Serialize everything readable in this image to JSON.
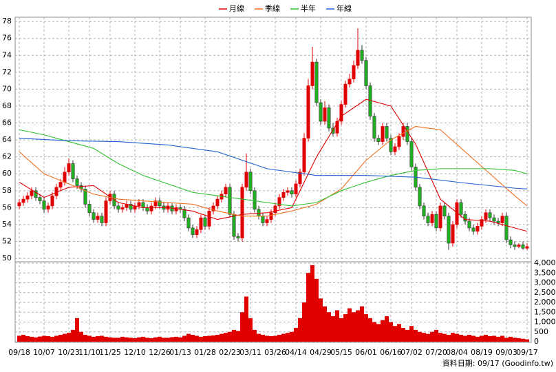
{
  "chart_data": {
    "type": "candlestick",
    "legend_position": "top",
    "up_color": "#e00000",
    "down_color": "#20b020",
    "volume_color": "#e00000",
    "grid": true,
    "source": "資料日期: 09/17 (Goodinfo.tw)",
    "categories": [
      "09/18",
      null,
      null,
      null,
      null,
      null,
      "10/07",
      null,
      null,
      null,
      null,
      null,
      "10/23",
      null,
      null,
      null,
      null,
      "11/10",
      null,
      null,
      null,
      null,
      "11/25",
      null,
      null,
      null,
      null,
      null,
      "12/10",
      null,
      null,
      null,
      null,
      null,
      "12/26",
      null,
      null,
      null,
      null,
      "01/13",
      null,
      null,
      null,
      null,
      null,
      "01/28",
      null,
      null,
      null,
      null,
      null,
      "02/23",
      null,
      null,
      null,
      null,
      "03/11",
      null,
      null,
      null,
      null,
      null,
      "03/26",
      null,
      null,
      null,
      null,
      "04/14",
      null,
      null,
      null,
      null,
      null,
      "04/29",
      null,
      null,
      null,
      null,
      "05/15",
      null,
      null,
      null,
      null,
      null,
      "06/01",
      null,
      null,
      null,
      null,
      null,
      "06/16",
      null,
      null,
      null,
      null,
      "07/02",
      null,
      null,
      null,
      null,
      null,
      "07/20",
      null,
      null,
      null,
      null,
      "08/04",
      null,
      null,
      null,
      null,
      null,
      "08/19",
      null,
      null,
      null,
      null,
      null,
      "09/03",
      null,
      null,
      null,
      null,
      "09/17"
    ],
    "open": [
      56.2,
      56.6,
      57.0,
      57.4,
      58.0,
      57.2,
      56.8,
      55.8,
      56.2,
      57.4,
      58.4,
      59.0,
      60.2,
      61.2,
      59.4,
      58.6,
      58.2,
      56.4,
      55.4,
      54.6,
      55.0,
      54.2,
      56.8,
      57.6,
      56.2,
      55.8,
      56.0,
      56.4,
      55.8,
      56.2,
      56.6,
      56.0,
      55.6,
      56.2,
      56.8,
      56.2,
      55.8,
      56.2,
      55.6,
      56.0,
      55.8,
      54.8,
      53.6,
      52.8,
      53.4,
      54.8,
      53.8,
      55.6,
      56.2,
      57.0,
      57.6,
      58.4,
      55.2,
      52.6,
      52.4,
      58.4,
      60.2,
      58.0,
      55.8,
      55.0,
      54.2,
      54.6,
      55.4,
      56.2,
      57.2,
      57.8,
      58.0,
      57.6,
      58.8,
      60.2,
      64.2,
      70.4,
      73.2,
      68.4,
      66.2,
      67.8,
      65.4,
      64.8,
      66.2,
      68.2,
      70.6,
      71.2,
      72.8,
      74.6,
      73.4,
      70.4,
      66.8,
      64.2,
      63.8,
      65.6,
      64.2,
      62.6,
      63.2,
      64.4,
      65.6,
      63.8,
      60.8,
      58.4,
      56.2,
      55.0,
      54.2,
      55.2,
      53.6,
      56.2,
      55.0,
      51.8,
      54.0,
      56.6,
      55.2,
      54.4,
      53.6,
      53.2,
      53.8,
      54.6,
      55.4,
      54.8,
      54.4,
      54.2,
      55.0,
      52.2,
      51.6,
      51.4,
      51.6,
      51.2
    ],
    "high": [
      57.0,
      57.4,
      57.8,
      58.4,
      58.4,
      57.6,
      57.2,
      56.6,
      57.8,
      58.8,
      59.4,
      60.8,
      61.8,
      61.6,
      59.8,
      59.0,
      58.6,
      56.8,
      55.8,
      55.4,
      55.4,
      57.2,
      58.0,
      58.0,
      56.6,
      56.4,
      56.8,
      56.8,
      56.6,
      57.0,
      57.0,
      56.4,
      56.6,
      57.2,
      57.2,
      56.6,
      56.6,
      56.6,
      56.4,
      56.4,
      56.2,
      55.2,
      54.0,
      53.8,
      55.2,
      55.2,
      56.0,
      56.6,
      57.4,
      58.0,
      58.8,
      58.8,
      55.6,
      53.0,
      58.8,
      62.4,
      60.6,
      58.4,
      56.2,
      55.4,
      55.0,
      55.8,
      56.6,
      57.6,
      58.2,
      58.4,
      58.4,
      59.2,
      60.6,
      64.8,
      71.2,
      75.0,
      73.6,
      68.8,
      68.6,
      68.2,
      66.0,
      66.6,
      68.6,
      71.0,
      71.8,
      73.4,
      77.2,
      75.2,
      73.8,
      70.8,
      67.2,
      64.6,
      66.0,
      66.0,
      64.6,
      63.6,
      64.8,
      66.0,
      66.0,
      64.2,
      61.2,
      58.8,
      56.6,
      55.4,
      55.6,
      55.6,
      56.6,
      56.6,
      55.4,
      54.4,
      57.0,
      57.0,
      55.6,
      54.8,
      54.0,
      54.2,
      55.0,
      55.8,
      55.8,
      55.2,
      54.8,
      55.4,
      55.4,
      52.6,
      52.0,
      51.8,
      52.0,
      51.8
    ],
    "low": [
      55.8,
      56.2,
      56.6,
      57.0,
      56.8,
      56.4,
      55.4,
      55.4,
      55.8,
      57.0,
      58.0,
      58.6,
      59.8,
      59.0,
      58.2,
      57.8,
      56.0,
      55.0,
      54.2,
      54.2,
      53.8,
      53.8,
      56.4,
      55.8,
      55.4,
      55.4,
      55.6,
      55.4,
      55.4,
      55.8,
      55.6,
      55.2,
      55.2,
      55.8,
      55.8,
      55.4,
      55.4,
      55.2,
      55.2,
      55.4,
      54.4,
      53.2,
      52.4,
      52.4,
      53.0,
      53.4,
      53.4,
      55.2,
      55.8,
      56.6,
      57.2,
      54.8,
      52.2,
      52.0,
      52.0,
      58.0,
      57.6,
      55.4,
      54.6,
      53.8,
      53.8,
      54.2,
      55.0,
      55.8,
      56.8,
      57.4,
      57.2,
      57.2,
      58.4,
      59.8,
      63.8,
      70.0,
      68.0,
      65.8,
      65.8,
      65.0,
      64.4,
      64.4,
      65.8,
      67.8,
      70.2,
      70.8,
      72.4,
      73.0,
      70.0,
      66.4,
      63.8,
      63.4,
      63.4,
      63.8,
      62.2,
      62.2,
      62.8,
      64.0,
      63.4,
      60.4,
      58.0,
      55.8,
      54.6,
      53.8,
      53.8,
      53.2,
      53.2,
      54.6,
      51.0,
      51.4,
      53.6,
      54.8,
      54.0,
      53.2,
      52.8,
      52.8,
      53.4,
      54.2,
      54.4,
      54.0,
      53.8,
      53.8,
      51.8,
      51.2,
      51.0,
      51.2,
      51.0,
      51.0
    ],
    "close": [
      56.6,
      57.0,
      57.4,
      58.0,
      57.2,
      56.8,
      55.8,
      56.2,
      57.4,
      58.4,
      59.0,
      60.2,
      61.2,
      59.4,
      58.6,
      58.2,
      56.4,
      55.4,
      54.6,
      55.0,
      54.2,
      56.8,
      57.6,
      56.2,
      55.8,
      56.0,
      56.4,
      55.8,
      56.2,
      56.6,
      56.0,
      55.6,
      56.2,
      56.8,
      56.2,
      55.8,
      56.2,
      55.6,
      56.0,
      55.8,
      54.8,
      53.6,
      52.8,
      53.4,
      54.8,
      53.8,
      55.6,
      56.2,
      57.0,
      57.6,
      58.4,
      55.2,
      52.6,
      52.4,
      58.4,
      60.2,
      58.0,
      55.8,
      55.0,
      54.2,
      54.6,
      55.4,
      56.2,
      57.2,
      57.8,
      58.0,
      57.6,
      58.8,
      60.2,
      64.2,
      70.4,
      73.2,
      68.4,
      66.2,
      67.8,
      65.4,
      64.8,
      66.2,
      68.2,
      70.6,
      71.2,
      72.8,
      74.6,
      73.4,
      70.4,
      66.8,
      64.2,
      63.8,
      65.6,
      64.2,
      62.6,
      63.2,
      64.4,
      65.6,
      63.8,
      60.8,
      58.4,
      56.2,
      55.0,
      54.2,
      55.2,
      53.6,
      56.2,
      55.0,
      51.8,
      54.0,
      56.6,
      55.2,
      54.4,
      53.6,
      53.2,
      53.8,
      54.6,
      55.4,
      54.8,
      54.4,
      54.2,
      55.0,
      52.2,
      51.6,
      51.4,
      51.6,
      51.2,
      51.4
    ],
    "volume": [
      300,
      350,
      280,
      250,
      220,
      260,
      300,
      280,
      250,
      300,
      350,
      400,
      450,
      600,
      1200,
      500,
      350,
      300,
      250,
      280,
      300,
      250,
      220,
      200,
      200,
      250,
      220,
      200,
      180,
      220,
      250,
      200,
      180,
      220,
      250,
      200,
      200,
      230,
      250,
      220,
      300,
      400,
      350,
      300,
      250,
      280,
      300,
      320,
      350,
      400,
      450,
      500,
      600,
      550,
      1500,
      2300,
      1200,
      600,
      400,
      350,
      300,
      280,
      300,
      350,
      400,
      450,
      500,
      700,
      1200,
      2000,
      3500,
      3900,
      3200,
      2200,
      1800,
      1500,
      1300,
      1600,
      1200,
      1400,
      1700,
      1500,
      1600,
      1800,
      1400,
      1200,
      1000,
      900,
      1100,
      1300,
      1000,
      800,
      900,
      700,
      600,
      800,
      600,
      500,
      450,
      400,
      500,
      600,
      450,
      400,
      350,
      450,
      400,
      350,
      300,
      350,
      300,
      250,
      300,
      350,
      280,
      300,
      250,
      300,
      200,
      250,
      200,
      180,
      150,
      120
    ],
    "series": [
      {
        "name": "月線",
        "color": "#e00000",
        "x": [
          0,
          6,
          12,
          18,
          24,
          30,
          36,
          42,
          48,
          54,
          60,
          66,
          72,
          78,
          84,
          90,
          96,
          102,
          108,
          114,
          120,
          123
        ],
        "values": [
          59.0,
          57.2,
          58.4,
          58.6,
          56.6,
          56.0,
          56.0,
          55.6,
          54.6,
          55.2,
          55.4,
          56.0,
          62.0,
          66.8,
          68.8,
          68.0,
          63.5,
          57.0,
          54.6,
          54.4,
          53.6,
          53.2
        ]
      },
      {
        "name": "季線",
        "color": "#f07020",
        "x": [
          0,
          6,
          12,
          18,
          24,
          30,
          36,
          42,
          48,
          54,
          60,
          66,
          72,
          78,
          84,
          90,
          96,
          102,
          108,
          114,
          120,
          123
        ],
        "values": [
          62.6,
          60.0,
          58.8,
          57.6,
          57.0,
          56.8,
          56.6,
          56.4,
          55.6,
          55.0,
          55.0,
          55.6,
          56.4,
          58.2,
          61.6,
          64.0,
          65.6,
          65.2,
          62.6,
          60.0,
          57.4,
          56.2
        ]
      },
      {
        "name": "半年",
        "color": "#30c030",
        "x": [
          0,
          6,
          12,
          18,
          24,
          30,
          36,
          42,
          48,
          54,
          60,
          66,
          72,
          78,
          84,
          90,
          96,
          102,
          108,
          114,
          120,
          123
        ],
        "values": [
          65.2,
          64.6,
          63.8,
          63.0,
          61.2,
          59.8,
          58.8,
          57.8,
          57.4,
          57.0,
          56.6,
          56.2,
          56.6,
          58.0,
          59.0,
          59.8,
          60.4,
          60.6,
          60.6,
          60.6,
          60.4,
          60.0
        ]
      },
      {
        "name": "年線",
        "color": "#2060d0",
        "x": [
          0,
          12,
          24,
          36,
          48,
          60,
          72,
          84,
          96,
          108,
          120,
          123
        ],
        "values": [
          64.2,
          63.9,
          63.8,
          63.4,
          62.6,
          60.6,
          59.8,
          59.8,
          59.6,
          58.9,
          58.3,
          58.2
        ]
      }
    ],
    "ylim": [
      49.6,
      78.5
    ],
    "yticks": [
      50,
      52,
      54,
      56,
      58,
      60,
      62,
      64,
      66,
      68,
      70,
      72,
      74,
      76,
      78
    ],
    "y2lim": [
      0,
      4000
    ],
    "y2ticks": [
      0,
      500,
      {
        "value": 1000,
        "label": "1,000"
      },
      {
        "value": 1500,
        "label": "1,500"
      },
      {
        "value": 2000,
        "label": "2,000"
      },
      {
        "value": 2500,
        "label": "2,500"
      },
      {
        "value": 3000,
        "label": "3,000"
      },
      {
        "value": 3500,
        "label": "3,500"
      },
      {
        "value": 4000,
        "label": "4,000"
      }
    ]
  }
}
